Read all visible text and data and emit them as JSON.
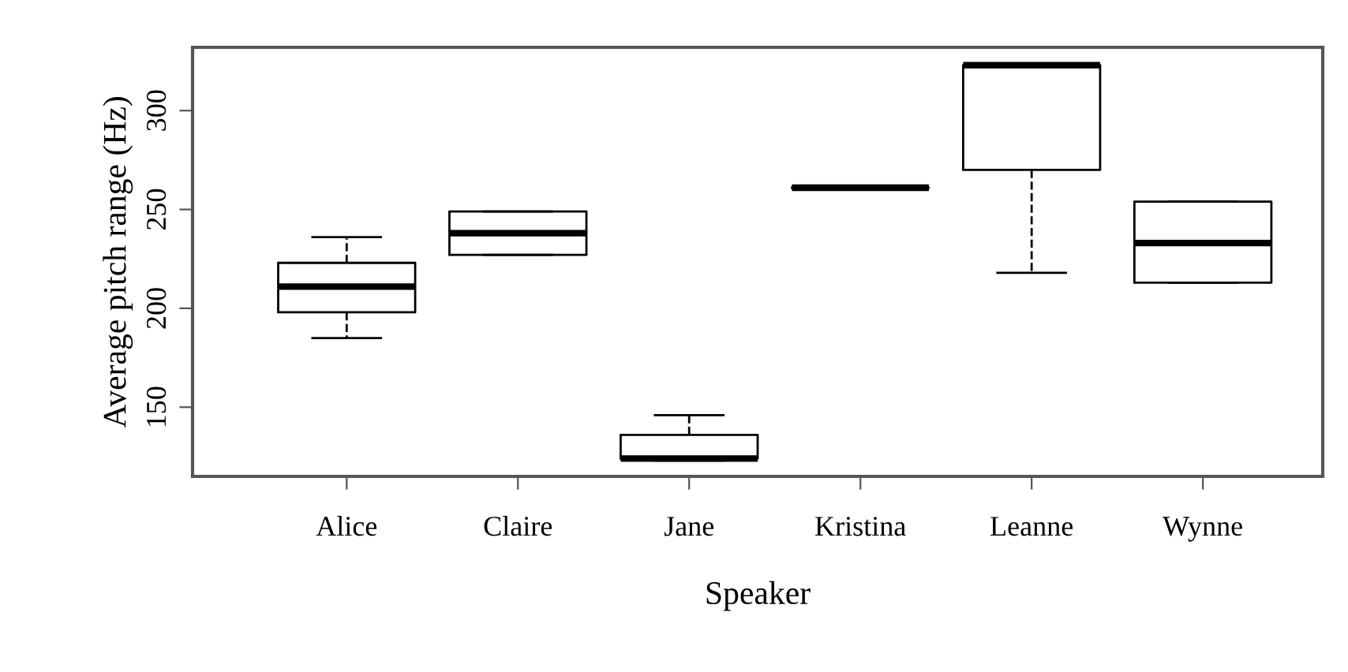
{
  "chart_data": {
    "type": "box",
    "xlabel": "Speaker",
    "ylabel": "Average pitch range (Hz)",
    "categories": [
      "Alice",
      "Claire",
      "Jane",
      "Kristina",
      "Leanne",
      "Wynne"
    ],
    "boxes": [
      {
        "low": 185,
        "q1": 198,
        "median": 211,
        "q3": 223,
        "high": 236
      },
      {
        "low": 227,
        "q1": 227,
        "median": 238,
        "q3": 249,
        "high": 249
      },
      {
        "low": 123,
        "q1": 124,
        "median": 124,
        "q3": 136,
        "high": 146
      },
      {
        "low": 261,
        "q1": 261,
        "median": 261,
        "q3": 261,
        "high": 261
      },
      {
        "low": 218,
        "q1": 270,
        "median": 323,
        "q3": 323,
        "high": 323
      },
      {
        "low": 213,
        "q1": 213,
        "median": 233,
        "q3": 254,
        "high": 254
      }
    ],
    "ylim": [
      115,
      332
    ],
    "yticks": [
      150,
      200,
      250,
      300
    ],
    "grid": false,
    "line_style": "dashed"
  }
}
